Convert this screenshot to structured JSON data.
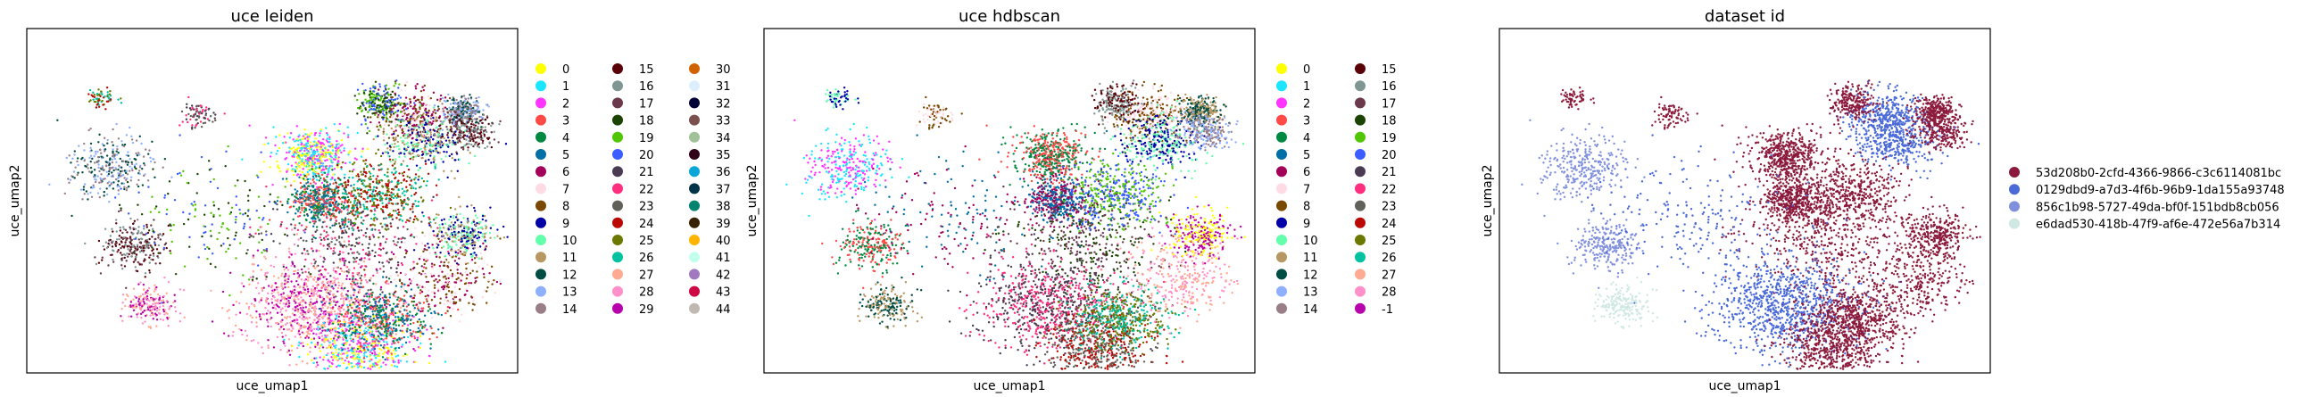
{
  "chart_data": [
    {
      "type": "scatter",
      "title": "uce leiden",
      "xlabel": "uce_umap1",
      "ylabel": "uce_umap2",
      "grid": false,
      "legend_position": "right",
      "legend": [
        {
          "label": "0",
          "color": "#ffff00"
        },
        {
          "label": "1",
          "color": "#1ce6ff"
        },
        {
          "label": "2",
          "color": "#ff34ff"
        },
        {
          "label": "3",
          "color": "#ff4a46"
        },
        {
          "label": "4",
          "color": "#008941"
        },
        {
          "label": "5",
          "color": "#006fa6"
        },
        {
          "label": "6",
          "color": "#a30059"
        },
        {
          "label": "7",
          "color": "#ffdbe5"
        },
        {
          "label": "8",
          "color": "#7a4900"
        },
        {
          "label": "9",
          "color": "#0000a6"
        },
        {
          "label": "10",
          "color": "#63ffac"
        },
        {
          "label": "11",
          "color": "#b79762"
        },
        {
          "label": "12",
          "color": "#004d43"
        },
        {
          "label": "13",
          "color": "#8fb0ff"
        },
        {
          "label": "14",
          "color": "#997d87"
        },
        {
          "label": "15",
          "color": "#5a0007"
        },
        {
          "label": "16",
          "color": "#809693"
        },
        {
          "label": "17",
          "color": "#6a3a4c"
        },
        {
          "label": "18",
          "color": "#1b4400"
        },
        {
          "label": "19",
          "color": "#4fc601"
        },
        {
          "label": "20",
          "color": "#3b5dff"
        },
        {
          "label": "21",
          "color": "#4a3b53"
        },
        {
          "label": "22",
          "color": "#ff2f80"
        },
        {
          "label": "23",
          "color": "#61615a"
        },
        {
          "label": "24",
          "color": "#ba0900"
        },
        {
          "label": "25",
          "color": "#6b7900"
        },
        {
          "label": "26",
          "color": "#00c2a0"
        },
        {
          "label": "27",
          "color": "#ffaa92"
        },
        {
          "label": "28",
          "color": "#ff90c9"
        },
        {
          "label": "29",
          "color": "#b903aa"
        },
        {
          "label": "30",
          "color": "#d16100"
        },
        {
          "label": "31",
          "color": "#ddefff"
        },
        {
          "label": "32",
          "color": "#000035"
        },
        {
          "label": "33",
          "color": "#7b4f4b"
        },
        {
          "label": "34",
          "color": "#a1c299"
        },
        {
          "label": "35",
          "color": "#300018"
        },
        {
          "label": "36",
          "color": "#0aa6d8"
        },
        {
          "label": "37",
          "color": "#013349"
        },
        {
          "label": "38",
          "color": "#00846f"
        },
        {
          "label": "39",
          "color": "#372101"
        },
        {
          "label": "40",
          "color": "#ffb500"
        },
        {
          "label": "41",
          "color": "#c2ffed"
        },
        {
          "label": "42",
          "color": "#a079bf"
        },
        {
          "label": "43",
          "color": "#cc0744"
        },
        {
          "label": "44",
          "color": "#c0b9b2"
        }
      ]
    },
    {
      "type": "scatter",
      "title": "uce hdbscan",
      "xlabel": "uce_umap1",
      "ylabel": "uce_umap2",
      "grid": false,
      "legend_position": "right",
      "legend": [
        {
          "label": "0",
          "color": "#ffff00"
        },
        {
          "label": "1",
          "color": "#1ce6ff"
        },
        {
          "label": "2",
          "color": "#ff34ff"
        },
        {
          "label": "3",
          "color": "#ff4a46"
        },
        {
          "label": "4",
          "color": "#008941"
        },
        {
          "label": "5",
          "color": "#006fa6"
        },
        {
          "label": "6",
          "color": "#a30059"
        },
        {
          "label": "7",
          "color": "#ffdbe5"
        },
        {
          "label": "8",
          "color": "#7a4900"
        },
        {
          "label": "9",
          "color": "#0000a6"
        },
        {
          "label": "10",
          "color": "#63ffac"
        },
        {
          "label": "11",
          "color": "#b79762"
        },
        {
          "label": "12",
          "color": "#004d43"
        },
        {
          "label": "13",
          "color": "#8fb0ff"
        },
        {
          "label": "14",
          "color": "#997d87"
        },
        {
          "label": "15",
          "color": "#5a0007"
        },
        {
          "label": "16",
          "color": "#809693"
        },
        {
          "label": "17",
          "color": "#6a3a4c"
        },
        {
          "label": "18",
          "color": "#1b4400"
        },
        {
          "label": "19",
          "color": "#4fc601"
        },
        {
          "label": "20",
          "color": "#3b5dff"
        },
        {
          "label": "21",
          "color": "#4a3b53"
        },
        {
          "label": "22",
          "color": "#ff2f80"
        },
        {
          "label": "23",
          "color": "#61615a"
        },
        {
          "label": "24",
          "color": "#ba0900"
        },
        {
          "label": "25",
          "color": "#6b7900"
        },
        {
          "label": "26",
          "color": "#00c2a0"
        },
        {
          "label": "27",
          "color": "#ffaa92"
        },
        {
          "label": "28",
          "color": "#ff90c9"
        },
        {
          "label": "-1",
          "color": "#b903aa"
        }
      ]
    },
    {
      "type": "scatter",
      "title": "dataset id",
      "xlabel": "uce_umap1",
      "ylabel": "uce_umap2",
      "grid": false,
      "legend_position": "right",
      "legend": [
        {
          "label": "53d208b0-2cfd-4366-9866-c3c6114081bc",
          "color": "#8b1a3c"
        },
        {
          "label": "0129dbd9-a7d3-4f6b-96b9-1da155a93748",
          "color": "#4a6ad8"
        },
        {
          "label": "856c1b98-5727-49da-bf0f-151bdb8cb056",
          "color": "#8090dd"
        },
        {
          "label": "e6dad530-418b-47f9-af6e-472e56a7b314",
          "color": "#cfe8e3"
        }
      ]
    }
  ]
}
